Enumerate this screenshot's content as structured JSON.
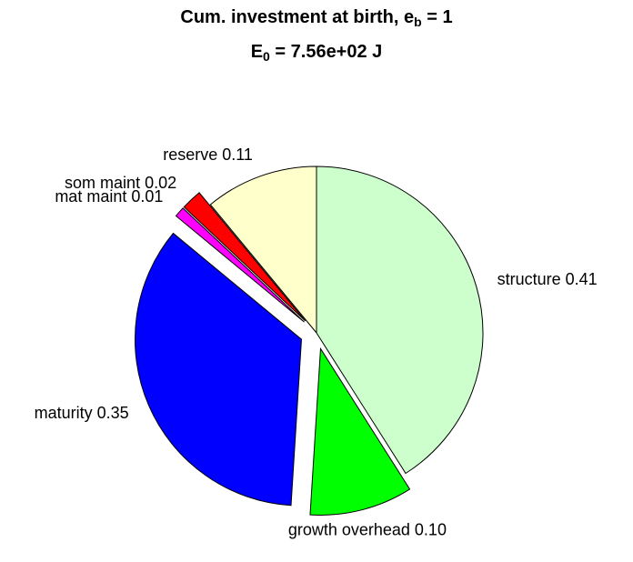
{
  "title": {
    "line1_prefix": "Cum. investment at birth, e",
    "line1_sub": "b",
    "line1_suffix": " = 1",
    "line2_prefix": "E",
    "line2_sub": "0",
    "line2_suffix": " = 7.56e+02 J"
  },
  "chart_data": {
    "type": "pie",
    "slices": [
      {
        "label": "structure 0.41",
        "value": 0.41,
        "color": "#ccffcc",
        "exploded": false
      },
      {
        "label": "growth overhead 0.10",
        "value": 0.1,
        "color": "#00ff00",
        "exploded": true
      },
      {
        "label": "maturity 0.35",
        "value": 0.35,
        "color": "#0000ff",
        "exploded": true
      },
      {
        "label": "mat maint 0.01",
        "value": 0.01,
        "color": "#ff00ff",
        "exploded": true
      },
      {
        "label": "som maint 0.02",
        "value": 0.02,
        "color": "#ff0000",
        "exploded": true
      },
      {
        "label": "reserve 0.11",
        "value": 0.11,
        "color": "#ffffcc",
        "exploded": false
      }
    ]
  }
}
